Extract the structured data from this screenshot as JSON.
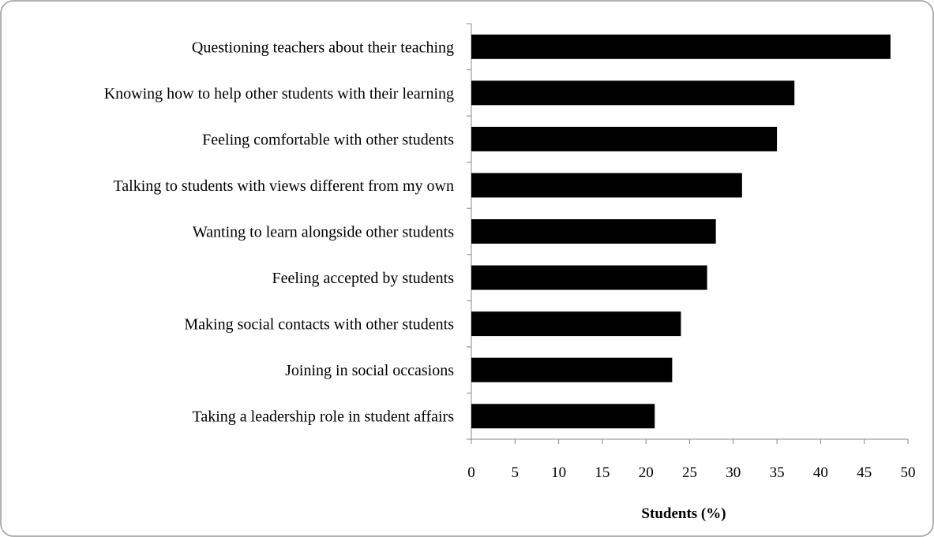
{
  "chart_data": {
    "type": "barh",
    "categories": [
      "Questioning teachers about their teaching",
      "Knowing how to help other students with their learning",
      "Feeling comfortable with other students",
      "Talking to students with views different from my own",
      "Wanting to learn alongside other students",
      "Feeling accepted by students",
      "Making social contacts with other students",
      "Joining in social occasions",
      "Taking a leadership role in student affairs"
    ],
    "values": [
      48,
      37,
      35,
      31,
      28,
      27,
      24,
      23,
      21
    ],
    "color": "#000000",
    "xlabel": "Students (%)",
    "xlim": [
      0,
      50
    ],
    "xticks": [
      0,
      5,
      10,
      15,
      20,
      25,
      30,
      35,
      40,
      45,
      50
    ],
    "grid": false
  }
}
